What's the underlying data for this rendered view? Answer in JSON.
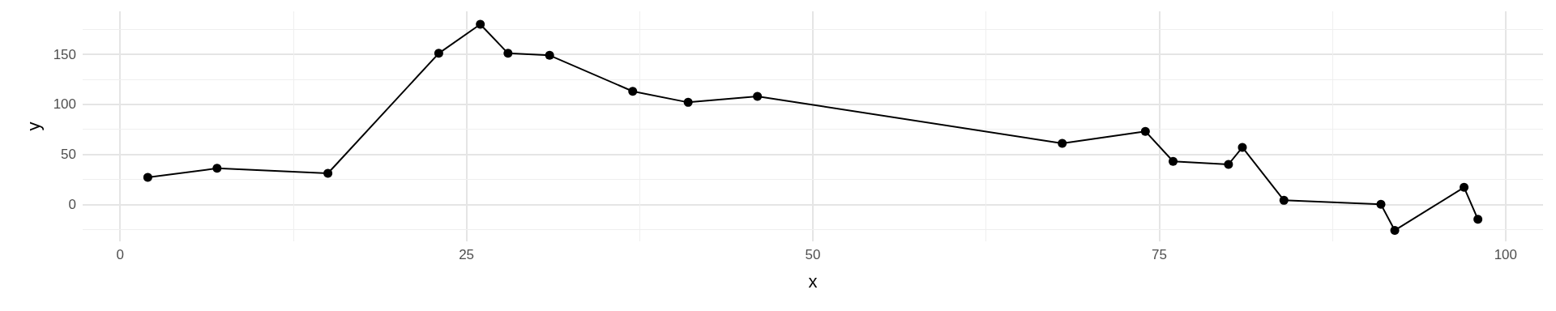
{
  "chart_data": {
    "type": "line",
    "xlabel": "x",
    "ylabel": "y",
    "x": [
      2,
      7,
      15,
      23,
      26,
      28,
      31,
      37,
      41,
      46,
      68,
      74,
      76,
      80,
      81,
      84,
      91,
      92,
      97,
      98
    ],
    "values": [
      27,
      36,
      31,
      151,
      180,
      151,
      149,
      113,
      102,
      108,
      61,
      73,
      43,
      40,
      57,
      4,
      0,
      -26,
      17,
      -15
    ],
    "color": "#000000",
    "marker": "circle",
    "line_style": "solid",
    "grid": true,
    "xlim": [
      -2.7,
      102.7
    ],
    "xticks": [
      0,
      25,
      50,
      75,
      100
    ],
    "ylim": [
      -37,
      193
    ],
    "yticks": [
      0,
      50,
      100,
      150
    ]
  }
}
